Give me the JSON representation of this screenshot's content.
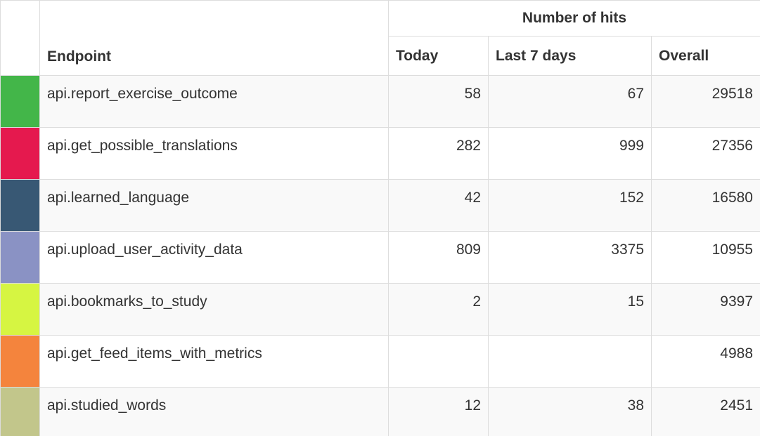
{
  "header": {
    "group_label": "Number of hits",
    "endpoint_label": "Endpoint",
    "col_today": "Today",
    "col_last7": "Last 7 days",
    "col_overall": "Overall"
  },
  "rows": [
    {
      "color": "#43b649",
      "endpoint": "api.report_exercise_outcome",
      "today": "58",
      "last7": "67",
      "overall": "29518"
    },
    {
      "color": "#e5194e",
      "endpoint": "api.get_possible_translations",
      "today": "282",
      "last7": "999",
      "overall": "27356"
    },
    {
      "color": "#385874",
      "endpoint": "api.learned_language",
      "today": "42",
      "last7": "152",
      "overall": "16580"
    },
    {
      "color": "#8a92c4",
      "endpoint": "api.upload_user_activity_data",
      "today": "809",
      "last7": "3375",
      "overall": "10955"
    },
    {
      "color": "#d6f542",
      "endpoint": "api.bookmarks_to_study",
      "today": "2",
      "last7": "15",
      "overall": "9397"
    },
    {
      "color": "#f4843d",
      "endpoint": "api.get_feed_items_with_metrics",
      "today": "",
      "last7": "",
      "overall": "4988"
    },
    {
      "color": "#c2c68b",
      "endpoint": "api.studied_words",
      "today": "12",
      "last7": "38",
      "overall": "2451"
    }
  ]
}
